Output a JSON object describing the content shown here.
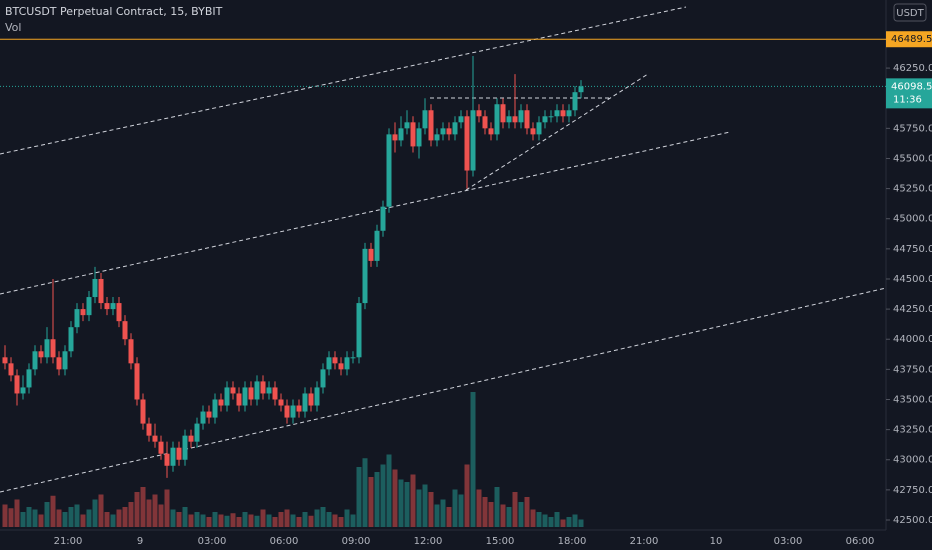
{
  "chart_data": {
    "type": "candlestick",
    "title": "BTCUSDT Perpetual Contract, 15, BYBIT",
    "indicator": "Vol",
    "currency": "USDT",
    "up_color": "#26a69a",
    "down_color": "#ef5350",
    "ylim": [
      42417,
      46815
    ],
    "yticks": [
      {
        "value": 42500,
        "label": "42500.0"
      },
      {
        "value": 42750,
        "label": "42750.0"
      },
      {
        "value": 43000,
        "label": "43000.0"
      },
      {
        "value": 43250,
        "label": "43250.0"
      },
      {
        "value": 43500,
        "label": "43500.0"
      },
      {
        "value": 43750,
        "label": "43750.0"
      },
      {
        "value": 44000,
        "label": "44000.0"
      },
      {
        "value": 44250,
        "label": "44250.0"
      },
      {
        "value": 44500,
        "label": "44500.0"
      },
      {
        "value": 44750,
        "label": "44750.0"
      },
      {
        "value": 45000,
        "label": "45000.0"
      },
      {
        "value": 45250,
        "label": "45250.0"
      },
      {
        "value": 45500,
        "label": "45500.0"
      },
      {
        "value": 45750,
        "label": "45750.0"
      },
      {
        "value": 46000,
        "label": "46000.0"
      },
      {
        "value": 46250,
        "label": "46250.0"
      }
    ],
    "alert_price": 46489.5,
    "countdown": "11:36",
    "time_labels": [
      "21:00",
      "9",
      "03:00",
      "06:00",
      "09:00",
      "12:00",
      "15:00",
      "18:00",
      "21:00",
      "10",
      "03:00",
      "06:00"
    ],
    "candles": [
      [
        43850,
        43950,
        43750,
        43800
      ],
      [
        43800,
        43850,
        43650,
        43700
      ],
      [
        43700,
        43750,
        43450,
        43550
      ],
      [
        43550,
        43700,
        43500,
        43600
      ],
      [
        43600,
        43800,
        43550,
        43750
      ],
      [
        43750,
        43950,
        43700,
        43900
      ],
      [
        43900,
        43950,
        43800,
        43850
      ],
      [
        43850,
        44100,
        43800,
        44000
      ],
      [
        44000,
        44500,
        43800,
        43850
      ],
      [
        43850,
        43900,
        43700,
        43750
      ],
      [
        43750,
        43950,
        43700,
        43900
      ],
      [
        43900,
        44150,
        43850,
        44100
      ],
      [
        44100,
        44300,
        44050,
        44250
      ],
      [
        44250,
        44300,
        44150,
        44200
      ],
      [
        44200,
        44400,
        44150,
        44350
      ],
      [
        44350,
        44600,
        44300,
        44500
      ],
      [
        44500,
        44550,
        44250,
        44300
      ],
      [
        44300,
        44350,
        44200,
        44250
      ],
      [
        44250,
        44350,
        44200,
        44300
      ],
      [
        44300,
        44350,
        44100,
        44150
      ],
      [
        44150,
        44200,
        43950,
        44000
      ],
      [
        44000,
        44050,
        43750,
        43800
      ],
      [
        43800,
        43850,
        43450,
        43500
      ],
      [
        43500,
        43550,
        43250,
        43300
      ],
      [
        43300,
        43350,
        43150,
        43200
      ],
      [
        43200,
        43300,
        43100,
        43150
      ],
      [
        43150,
        43200,
        43000,
        43050
      ],
      [
        43050,
        43150,
        42850,
        42950
      ],
      [
        42950,
        43150,
        42900,
        43100
      ],
      [
        43100,
        43150,
        42950,
        43000
      ],
      [
        43000,
        43250,
        42950,
        43200
      ],
      [
        43200,
        43250,
        43100,
        43150
      ],
      [
        43150,
        43350,
        43100,
        43300
      ],
      [
        43300,
        43450,
        43250,
        43400
      ],
      [
        43400,
        43450,
        43300,
        43350
      ],
      [
        43350,
        43550,
        43300,
        43500
      ],
      [
        43500,
        43550,
        43400,
        43450
      ],
      [
        43450,
        43650,
        43400,
        43600
      ],
      [
        43600,
        43650,
        43500,
        43550
      ],
      [
        43550,
        43600,
        43400,
        43450
      ],
      [
        43450,
        43650,
        43400,
        43600
      ],
      [
        43600,
        43650,
        43450,
        43500
      ],
      [
        43500,
        43700,
        43450,
        43650
      ],
      [
        43650,
        43700,
        43500,
        43550
      ],
      [
        43550,
        43650,
        43500,
        43600
      ],
      [
        43600,
        43650,
        43450,
        43500
      ],
      [
        43500,
        43550,
        43400,
        43450
      ],
      [
        43450,
        43500,
        43300,
        43350
      ],
      [
        43350,
        43500,
        43300,
        43450
      ],
      [
        43450,
        43500,
        43350,
        43400
      ],
      [
        43400,
        43600,
        43350,
        43550
      ],
      [
        43550,
        43600,
        43400,
        43450
      ],
      [
        43450,
        43650,
        43400,
        43600
      ],
      [
        43600,
        43800,
        43550,
        43750
      ],
      [
        43750,
        43900,
        43700,
        43850
      ],
      [
        43850,
        43900,
        43750,
        43800
      ],
      [
        43800,
        43850,
        43700,
        43750
      ],
      [
        43750,
        43900,
        43700,
        43850
      ],
      [
        43850,
        43900,
        43800,
        43850
      ],
      [
        43850,
        44350,
        43800,
        44300
      ],
      [
        44300,
        44800,
        44250,
        44750
      ],
      [
        44750,
        44800,
        44600,
        44650
      ],
      [
        44650,
        44950,
        44600,
        44900
      ],
      [
        44900,
        45150,
        44850,
        45100
      ],
      [
        45100,
        45750,
        45050,
        45700
      ],
      [
        45700,
        45800,
        45550,
        45650
      ],
      [
        45650,
        45850,
        45600,
        45750
      ],
      [
        45750,
        45900,
        45700,
        45800
      ],
      [
        45800,
        45850,
        45550,
        45600
      ],
      [
        45600,
        45800,
        45500,
        45750
      ],
      [
        45750,
        46000,
        45700,
        45900
      ],
      [
        45900,
        45950,
        45600,
        45650
      ],
      [
        45650,
        45750,
        45600,
        45700
      ],
      [
        45700,
        45800,
        45650,
        45750
      ],
      [
        45750,
        45800,
        45650,
        45700
      ],
      [
        45700,
        45850,
        45650,
        45800
      ],
      [
        45800,
        45900,
        45750,
        45850
      ],
      [
        45850,
        45900,
        45250,
        45400
      ],
      [
        45400,
        46350,
        45350,
        45900
      ],
      [
        45900,
        45950,
        45800,
        45850
      ],
      [
        45850,
        45900,
        45700,
        45750
      ],
      [
        45750,
        45800,
        45650,
        45700
      ],
      [
        45700,
        46000,
        45650,
        45950
      ],
      [
        45950,
        46000,
        45750,
        45800
      ],
      [
        45800,
        45900,
        45750,
        45850
      ],
      [
        45850,
        46200,
        45750,
        45800
      ],
      [
        45800,
        45950,
        45750,
        45900
      ],
      [
        45900,
        45950,
        45700,
        45750
      ],
      [
        45750,
        45800,
        45650,
        45700
      ],
      [
        45700,
        45850,
        45650,
        45800
      ],
      [
        45800,
        45900,
        45750,
        45850
      ],
      [
        45850,
        45900,
        45800,
        45850
      ],
      [
        45850,
        45950,
        45800,
        45900
      ],
      [
        45900,
        45950,
        45800,
        45850
      ],
      [
        45850,
        45950,
        45800,
        45900
      ],
      [
        45900,
        46100,
        45850,
        46050
      ],
      [
        46050,
        46150,
        46000,
        46098.5
      ]
    ],
    "volume": [
      18,
      15,
      22,
      12,
      16,
      14,
      10,
      20,
      25,
      14,
      12,
      16,
      18,
      10,
      14,
      22,
      26,
      12,
      10,
      14,
      16,
      20,
      28,
      32,
      22,
      26,
      18,
      30,
      14,
      12,
      16,
      10,
      12,
      10,
      8,
      12,
      10,
      9,
      11,
      8,
      12,
      10,
      9,
      14,
      10,
      8,
      12,
      14,
      10,
      8,
      12,
      9,
      14,
      16,
      12,
      10,
      8,
      14,
      10,
      48,
      55,
      40,
      44,
      50,
      58,
      46,
      38,
      36,
      42,
      30,
      34,
      28,
      18,
      22,
      16,
      30,
      26,
      50,
      108,
      30,
      24,
      20,
      32,
      18,
      16,
      28,
      20,
      24,
      14,
      12,
      10,
      8,
      12,
      6,
      8,
      10,
      6
    ]
  }
}
